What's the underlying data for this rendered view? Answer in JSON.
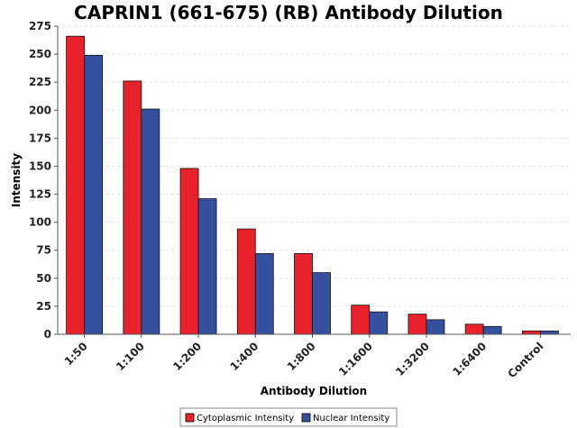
{
  "chart_data": {
    "type": "bar",
    "title": "CAPRIN1 (661-675) (RB) Antibody Dilution",
    "xlabel": "Antibody Dilution",
    "ylabel": "Intensity",
    "ylim": [
      0,
      275
    ],
    "yticks": [
      0,
      25,
      50,
      75,
      100,
      125,
      150,
      175,
      200,
      225,
      250,
      275
    ],
    "grid": true,
    "legend_position": "bottom-center",
    "categories": [
      "1:50",
      "1:100",
      "1:200",
      "1:400",
      "1:800",
      "1:1600",
      "1:3200",
      "1:6400",
      "Control"
    ],
    "series": [
      {
        "name": "Cytoplasmic Intensity",
        "color": "#e8212b",
        "values": [
          266,
          226,
          148,
          94,
          72,
          26,
          18,
          9,
          3
        ]
      },
      {
        "name": "Nuclear Intensity",
        "color": "#3650a0",
        "values": [
          249,
          201,
          121,
          72,
          55,
          20,
          13,
          7,
          3
        ]
      }
    ]
  }
}
